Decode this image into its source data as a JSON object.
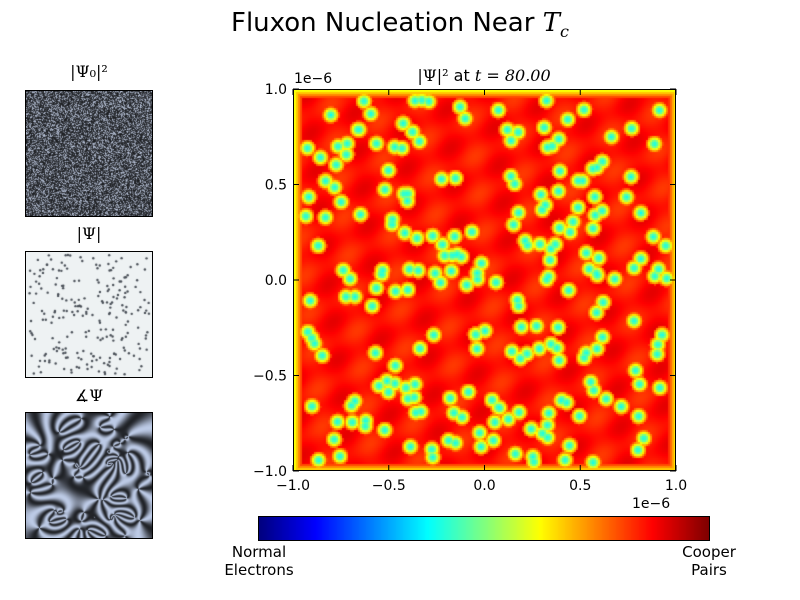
{
  "title": {
    "prefix": "Fluxon Nucleation Near ",
    "symbol": "T",
    "subscript": "c"
  },
  "panels": {
    "psi0": {
      "title": "|Ψ₀|²"
    },
    "abs": {
      "title": "|Ψ|"
    },
    "phase": {
      "title": "∡Ψ"
    }
  },
  "main": {
    "title_prefix": "|Ψ|²",
    "title_at": " at ",
    "title_t": "t = 80.00",
    "offset_x": "1e−6",
    "offset_y": "1e−6"
  },
  "colorbar": {
    "left_label_line1": "Normal",
    "left_label_line2": "Electrons",
    "right_label_line1": "Cooper",
    "right_label_line2": "Pairs",
    "colormap": "jet"
  },
  "chart_data": {
    "type": "heatmap",
    "title": "|Ψ|² at t = 80.00",
    "xlim": [
      -1.0,
      1.0
    ],
    "ylim": [
      -1.0,
      1.0
    ],
    "xticks": [
      "−1.0",
      "−0.5",
      "0.0",
      "0.5",
      "1.0"
    ],
    "yticks": [
      "−1.0",
      "−0.5",
      "0.0",
      "0.5",
      "1.0"
    ],
    "axis_scale_label": "1e−6",
    "colormap": "jet",
    "dominant_color": "#ee1a0a",
    "vortex_core_color": "#5fd9c4"
  }
}
